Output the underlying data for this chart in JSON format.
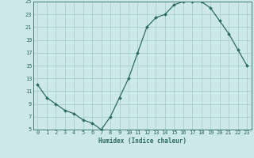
{
  "xlabel": "Humidex (Indice chaleur)",
  "ylabel": "",
  "x": [
    0,
    1,
    2,
    3,
    4,
    5,
    6,
    7,
    8,
    9,
    10,
    11,
    12,
    13,
    14,
    15,
    16,
    17,
    18,
    19,
    20,
    21,
    22,
    23
  ],
  "y": [
    12,
    10,
    9,
    8,
    7.5,
    6.5,
    6,
    5,
    7,
    10,
    13,
    17,
    21,
    22.5,
    23,
    24.5,
    25,
    25,
    25,
    24,
    22,
    20,
    17.5,
    15
  ],
  "line_color": "#2e6b5e",
  "marker": "D",
  "marker_size": 2.0,
  "bg_color": "#cce8e8",
  "grid_color": "#aacfcf",
  "tick_color": "#2e6b5e",
  "label_color": "#2e6b5e",
  "ylim": [
    5,
    25
  ],
  "xlim": [
    -0.5,
    23.5
  ],
  "yticks": [
    5,
    7,
    9,
    11,
    13,
    15,
    17,
    19,
    21,
    23,
    25
  ],
  "xticks": [
    0,
    1,
    2,
    3,
    4,
    5,
    6,
    7,
    8,
    9,
    10,
    11,
    12,
    13,
    14,
    15,
    16,
    17,
    18,
    19,
    20,
    21,
    22,
    23
  ],
  "tick_fontsize": 5.0,
  "xlabel_fontsize": 5.5
}
